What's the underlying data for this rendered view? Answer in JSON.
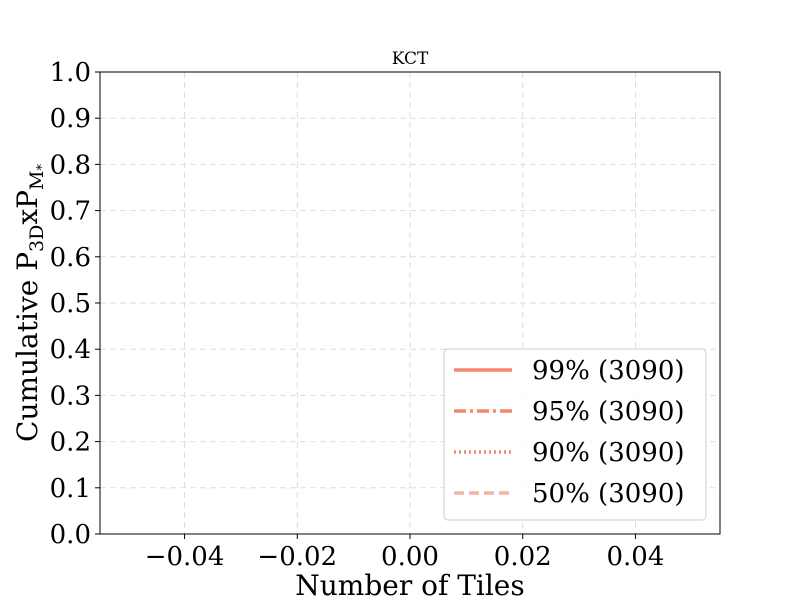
{
  "chart_data": {
    "type": "line",
    "title": "KCT",
    "xlabel": "Number of Tiles",
    "ylabel": {
      "base": "Cumulative P",
      "sub1": "3D",
      "mid": "xP",
      "sub2": "M",
      "subsub": "*"
    },
    "xlim": [
      -0.055,
      0.055
    ],
    "ylim": [
      0.0,
      1.0
    ],
    "x_ticks": [
      -0.04,
      -0.02,
      0.0,
      0.02,
      0.04
    ],
    "x_tick_labels": [
      "−0.04",
      "−0.02",
      "0.00",
      "0.02",
      "0.04"
    ],
    "y_ticks": [
      0.0,
      0.1,
      0.2,
      0.3,
      0.4,
      0.5,
      0.6,
      0.7,
      0.8,
      0.9,
      1.0
    ],
    "y_tick_labels": [
      "0.0",
      "0.1",
      "0.2",
      "0.3",
      "0.4",
      "0.5",
      "0.6",
      "0.7",
      "0.8",
      "0.9",
      "1.0"
    ],
    "grid": true,
    "legend_position": "lower-right",
    "series": [
      {
        "name": "99% (3090)",
        "style": "solid",
        "color": "#f4876e",
        "x": [],
        "y": []
      },
      {
        "name": "95% (3090)",
        "style": "dashdot",
        "color": "#f4876e",
        "x": [],
        "y": []
      },
      {
        "name": "90% (3090)",
        "style": "dotted",
        "color": "#f4876e",
        "x": [],
        "y": []
      },
      {
        "name": "50% (3090)",
        "style": "dashed",
        "color": "#f8b2a2",
        "x": [],
        "y": []
      }
    ]
  }
}
